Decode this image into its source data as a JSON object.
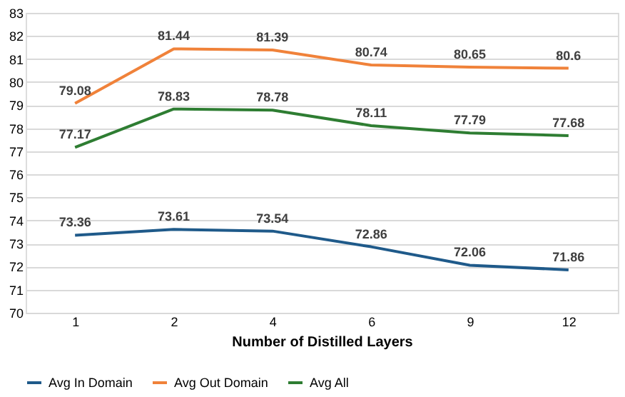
{
  "chart_data": {
    "type": "line",
    "xlabel": "Number of Distilled Layers",
    "categories": [
      "1",
      "2",
      "4",
      "6",
      "9",
      "12"
    ],
    "series": [
      {
        "name": "Avg In Domain",
        "color": "#1f5a8a",
        "values": [
          73.36,
          73.61,
          73.54,
          72.86,
          72.06,
          71.86
        ]
      },
      {
        "name": "Avg Out Domain",
        "color": "#f0823a",
        "values": [
          79.08,
          81.44,
          81.39,
          80.74,
          80.65,
          80.6
        ]
      },
      {
        "name": "Avg All",
        "color": "#2e7d32",
        "values": [
          77.17,
          78.83,
          78.78,
          78.11,
          77.79,
          77.68
        ]
      }
    ],
    "ylim": [
      70,
      83
    ],
    "yticks": [
      70,
      71,
      72,
      73,
      74,
      75,
      76,
      77,
      78,
      79,
      80,
      81,
      82,
      83
    ],
    "grid": "y",
    "legend": "bottom",
    "data_labels": true,
    "marker": "none",
    "line_style": "solid"
  }
}
